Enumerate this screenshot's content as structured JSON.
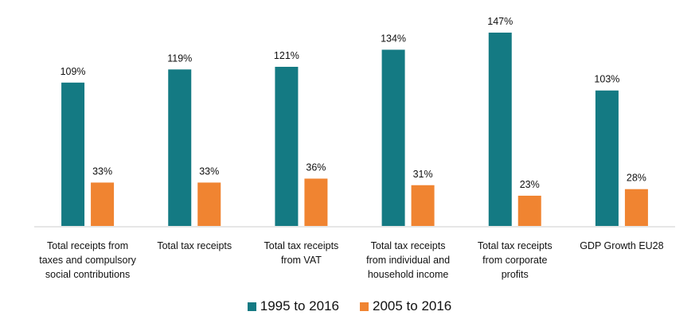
{
  "chart_data": {
    "type": "bar",
    "title": "",
    "xlabel": "",
    "ylabel": "",
    "ylim": [
      0,
      150
    ],
    "grid": false,
    "legend_position": "bottom",
    "categories": [
      "Total receipts from taxes and compulsory social contributions",
      "Total tax receipts",
      "Total tax receipts from VAT",
      "Total tax receipts from individual and household income",
      "Total tax receipts from corporate profits",
      "GDP Growth EU28"
    ],
    "category_lines": [
      [
        "Total receipts from",
        "taxes and compulsory",
        "social contributions"
      ],
      [
        "Total tax receipts"
      ],
      [
        "Total tax receipts",
        "from VAT"
      ],
      [
        "Total tax receipts",
        "from individual and",
        "household income"
      ],
      [
        "Total tax receipts",
        "from corporate",
        "profits"
      ],
      [
        "GDP Growth EU28"
      ]
    ],
    "series": [
      {
        "name": "1995 to 2016",
        "color": "#147a83",
        "values": [
          109,
          119,
          121,
          134,
          147,
          103
        ],
        "labels": [
          "109%",
          "119%",
          "121%",
          "134%",
          "147%",
          "103%"
        ]
      },
      {
        "name": "2005 to 2016",
        "color": "#f08431",
        "values": [
          33,
          33,
          36,
          31,
          23,
          28
        ],
        "labels": [
          "33%",
          "33%",
          "36%",
          "31%",
          "23%",
          "28%"
        ]
      }
    ]
  }
}
